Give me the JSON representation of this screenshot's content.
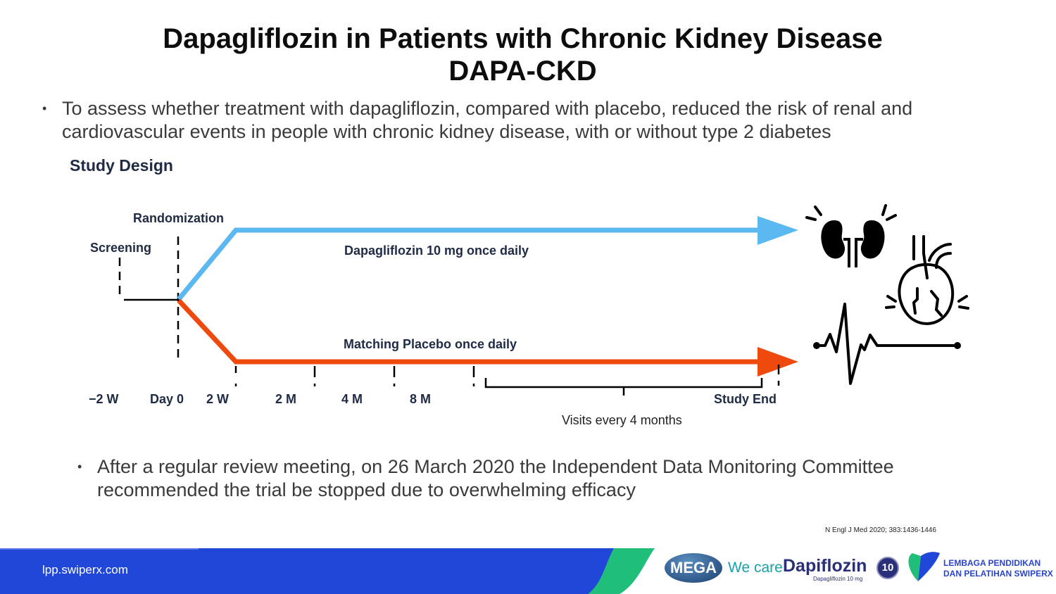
{
  "title": {
    "line1": "Dapagliflozin in Patients with Chronic Kidney Disease",
    "line2": "DAPA-CKD"
  },
  "objective": "To assess whether treatment with dapagliflozin, compared with placebo, reduced the risk of renal and cardiovascular events in people with chronic kidney disease, with or without type 2 diabetes",
  "study_design": {
    "heading": "Study Design",
    "randomization_label": "Randomization",
    "screening_label": "Screening",
    "treatment_arm": "Dapagliflozin 10 mg once daily",
    "placebo_arm": "Matching Placebo once daily",
    "timepoints": [
      "−2 W",
      "Day 0",
      "2 W",
      "2 M",
      "4 M",
      "8 M",
      "Study End"
    ],
    "visits_label": "Visits every 4 months",
    "colors": {
      "treatment": "#5bb8f0",
      "placebo": "#ee4a0e"
    },
    "icons": [
      "kidney-icon",
      "heart-icon",
      "ecg-icon"
    ]
  },
  "conclusion": "After a regular review meeting, on 26 March 2020 the Independent Data Monitoring Committee recommended the trial be stopped due to overwhelming efficacy",
  "reference": "N Engl J Med 2020; 383:1436-1446",
  "footer": {
    "url": "lpp.swiperx.com",
    "mega": "MEGA",
    "we_care": "We care",
    "brand": "Dapiflozin",
    "brand_sub": "Dapagliflozin 10 mg",
    "brand_badge": "10",
    "lpp_line1": "LEMBAGA PENDIDIKAN",
    "lpp_line2": "DAN PELATIHAN SWIPERX"
  }
}
